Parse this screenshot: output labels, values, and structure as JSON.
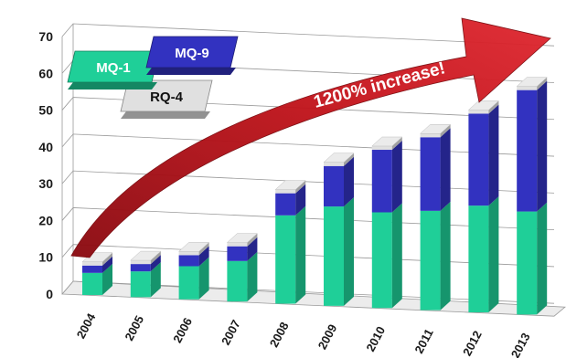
{
  "chart_data": {
    "type": "bar",
    "stacked": true,
    "categories": [
      "2004",
      "2005",
      "2006",
      "2007",
      "2008",
      "2009",
      "2010",
      "2011",
      "2012",
      "2013"
    ],
    "series": [
      {
        "name": "MQ-1",
        "values": [
          6,
          7,
          9,
          11,
          24,
          27,
          26,
          27,
          29,
          28
        ]
      },
      {
        "name": "MQ-9",
        "values": [
          2,
          2,
          3,
          4,
          6,
          11,
          17,
          20,
          25,
          33
        ]
      },
      {
        "name": "RQ-4",
        "values": [
          1,
          1,
          1,
          1,
          1,
          1,
          1,
          1,
          1,
          1
        ]
      }
    ],
    "y_ticks": [
      "0",
      "10",
      "20",
      "30",
      "40",
      "50",
      "60",
      "70"
    ],
    "ylim": [
      0,
      70
    ],
    "grid": true,
    "legend_placement": "top-left",
    "annotation": "1200% increase!",
    "colors": {
      "MQ-1": "#1fcf98",
      "MQ-9": "#3232c0",
      "RQ-4": "#e0e0e0",
      "arrow": "#c0141c"
    }
  }
}
